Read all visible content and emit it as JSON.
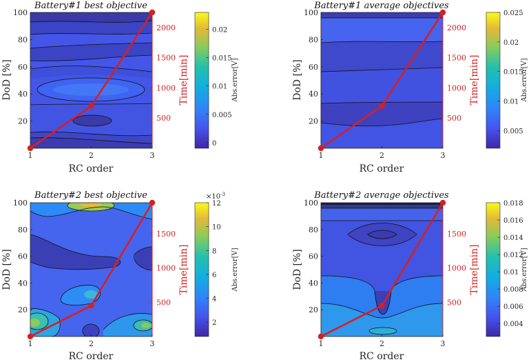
{
  "chart_data": [
    {
      "type": "heatmap",
      "title": "Battery#1 best objective",
      "xlabel": "RC order",
      "ylabel": "DoD [%]",
      "ylabel2": "Time[min]",
      "colorbar_label": "Abs.error[V]",
      "colorbar_exponent": "",
      "xlim": [
        1,
        3
      ],
      "ylim": [
        0,
        100
      ],
      "xticks": [
        "1",
        "2",
        "3"
      ],
      "yticks": [
        "20",
        "40",
        "60",
        "80",
        "100"
      ],
      "y2lim": [
        0,
        2250
      ],
      "y2ticks": [
        "500",
        "1000",
        "1500",
        "2000"
      ],
      "clim": [
        -0.001,
        0.023
      ],
      "cticks": [
        "0",
        "0.005",
        "0.01",
        "0.015",
        "0.02"
      ],
      "time_series": {
        "x": [
          1,
          2,
          3
        ],
        "values": [
          0,
          700,
          2250
        ]
      }
    },
    {
      "type": "heatmap",
      "title": "Battery#1 average objectives",
      "xlabel": "RC order",
      "ylabel": "DoD [%]",
      "ylabel2": "Time[min]",
      "colorbar_label": "Abs.error[V]",
      "colorbar_exponent": "",
      "xlim": [
        1,
        3
      ],
      "ylim": [
        0,
        100
      ],
      "xticks": [
        "1",
        "2",
        "3"
      ],
      "yticks": [
        "20",
        "40",
        "60",
        "80",
        "100"
      ],
      "y2lim": [
        0,
        2250
      ],
      "y2ticks": [
        "500",
        "1000",
        "1500",
        "2000"
      ],
      "clim": [
        0.002,
        0.025
      ],
      "cticks": [
        "0.005",
        "0.01",
        "0.015",
        "0.02",
        "0.025"
      ],
      "time_series": {
        "x": [
          1,
          2,
          3
        ],
        "values": [
          0,
          700,
          2250
        ]
      }
    },
    {
      "type": "heatmap",
      "title": "Battery#2 best objective",
      "xlabel": "RC order",
      "ylabel": "DoD [%]",
      "ylabel2": "Time[min]",
      "colorbar_label": "Abs.error[V]",
      "colorbar_exponent": "×10",
      "colorbar_exponent_power": "-3",
      "xlim": [
        1,
        3
      ],
      "ylim": [
        0,
        100
      ],
      "xticks": [
        "1",
        "2",
        "3"
      ],
      "yticks": [
        "20",
        "40",
        "60",
        "80",
        "100"
      ],
      "y2lim": [
        0,
        1950
      ],
      "y2ticks": [
        "500",
        "1000",
        "1500"
      ],
      "clim": [
        0.8,
        12
      ],
      "cticks": [
        "2",
        "4",
        "6",
        "8",
        "10",
        "12"
      ],
      "time_series": {
        "x": [
          1,
          2,
          3
        ],
        "values": [
          0,
          450,
          1950
        ]
      }
    },
    {
      "type": "heatmap",
      "title": "Battery#2 average objectives",
      "xlabel": "RC order",
      "ylabel": "DoD [%]",
      "ylabel2": "Time[min]",
      "colorbar_label": "Abs.error[V]",
      "colorbar_exponent": "",
      "xlim": [
        1,
        3
      ],
      "ylim": [
        0,
        100
      ],
      "xticks": [
        "1",
        "2",
        "3"
      ],
      "yticks": [
        "20",
        "40",
        "60",
        "80",
        "100"
      ],
      "y2lim": [
        0,
        1950
      ],
      "y2ticks": [
        "500",
        "1000",
        "1500"
      ],
      "clim": [
        0.0025,
        0.018
      ],
      "cticks": [
        "0.004",
        "0.006",
        "0.008",
        "0.01",
        "0.012",
        "0.014",
        "0.016",
        "0.018"
      ],
      "time_series": {
        "x": [
          1,
          2,
          3
        ],
        "values": [
          0,
          450,
          1950
        ]
      }
    }
  ]
}
